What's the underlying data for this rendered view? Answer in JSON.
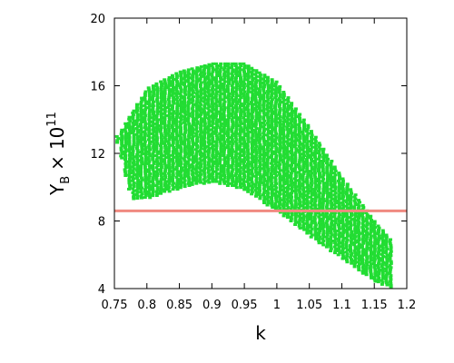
{
  "chart_data": {
    "type": "scatter",
    "xlabel": "k",
    "ylabel": {
      "symbol": "Y",
      "subscript": "B",
      "times": "×",
      "base": "10",
      "exponent": "11"
    },
    "xlim": [
      0.75,
      1.2
    ],
    "ylim": [
      4,
      20
    ],
    "xticks": [
      "0.75",
      "0.8",
      "0.85",
      "0.9",
      "0.95",
      "1",
      "1.05",
      "1.1",
      "1.15",
      "1.2"
    ],
    "yticks": [
      "4",
      "8",
      "12",
      "16",
      "20"
    ],
    "grid": false,
    "legend": "none",
    "reference_line": {
      "y": 8.6,
      "color": "#f08a80"
    },
    "scatter": {
      "color": "#22dd33",
      "x_range": [
        0.755,
        1.175
      ],
      "columns": 70,
      "upper_envelope": [
        [
          0.755,
          13.0
        ],
        [
          0.8,
          15.8
        ],
        [
          0.85,
          16.8
        ],
        [
          0.9,
          17.3
        ],
        [
          0.95,
          17.3
        ],
        [
          1.0,
          16.2
        ],
        [
          1.05,
          13.5
        ],
        [
          1.1,
          10.6
        ],
        [
          1.15,
          8.0
        ],
        [
          1.175,
          6.9
        ]
      ],
      "lower_envelope": [
        [
          0.755,
          12.6
        ],
        [
          0.77,
          10.2
        ],
        [
          0.78,
          9.2
        ],
        [
          0.8,
          9.3
        ],
        [
          0.85,
          9.9
        ],
        [
          0.9,
          10.3
        ],
        [
          0.95,
          9.8
        ],
        [
          1.0,
          8.6
        ],
        [
          1.05,
          7.1
        ],
        [
          1.1,
          5.8
        ],
        [
          1.15,
          4.4
        ],
        [
          1.175,
          4.0
        ]
      ]
    }
  }
}
